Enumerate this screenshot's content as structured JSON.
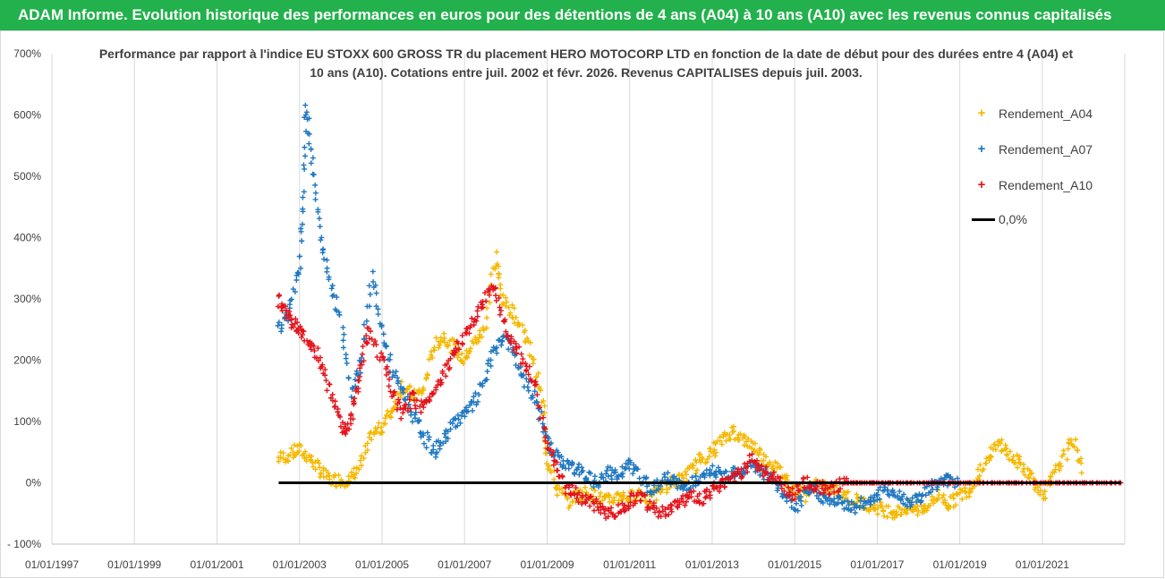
{
  "banner": {
    "title": "ADAM Informe. Evolution historique des performances en euros pour des détentions de 4 ans (A04) à 10 ans (A10) avec les revenus connus capitalisés",
    "background": "#22b14c"
  },
  "chart_data": {
    "type": "scatter",
    "title": "Performance par rapport à l'indice EU STOXX 600 GROSS TR  du placement HERO MOTOCORP LTD en fonction de la date de début pour des durées entre 4 (A04) et 10 ans (A10).  Cotations entre juil. 2002 et févr. 2026. Revenus CAPITALISES depuis juil. 2003.",
    "xlabel": "",
    "ylabel": "",
    "x_tick_labels": [
      "01/01/1997",
      "01/01/1999",
      "01/01/2001",
      "01/01/2003",
      "01/01/2005",
      "01/01/2007",
      "01/01/2009",
      "01/01/2011",
      "01/01/2013",
      "01/01/2015",
      "01/01/2017",
      "01/01/2019",
      "01/01/2021"
    ],
    "y_tick_labels": [
      "700%",
      "600%",
      "500%",
      "400%",
      "300%",
      "200%",
      "100%",
      "0%",
      "- 100%"
    ],
    "ylim": [
      -100,
      700
    ],
    "xlim": [
      "1997-01-01",
      "2022-12-31"
    ],
    "grid": "vertical",
    "legend_position": "top-right",
    "series": [
      {
        "name": "Rendement_A04",
        "color": "#f5b800",
        "marker": "+",
        "points": [
          [
            "2002-07",
            40
          ],
          [
            "2002-10",
            45
          ],
          [
            "2003-01",
            55
          ],
          [
            "2003-04",
            40
          ],
          [
            "2003-07",
            20
          ],
          [
            "2003-10",
            5
          ],
          [
            "2004-01",
            5
          ],
          [
            "2004-04",
            5
          ],
          [
            "2004-07",
            30
          ],
          [
            "2004-10",
            80
          ],
          [
            "2005-01",
            90
          ],
          [
            "2005-04",
            120
          ],
          [
            "2005-07",
            160
          ],
          [
            "2005-10",
            140
          ],
          [
            "2006-01",
            150
          ],
          [
            "2006-04",
            220
          ],
          [
            "2006-07",
            240
          ],
          [
            "2006-10",
            220
          ],
          [
            "2007-01",
            200
          ],
          [
            "2007-04",
            230
          ],
          [
            "2007-07",
            250
          ],
          [
            "2007-10",
            370
          ],
          [
            "2007-12",
            300
          ],
          [
            "2008-03",
            280
          ],
          [
            "2008-06",
            250
          ],
          [
            "2008-09",
            200
          ],
          [
            "2008-12",
            120
          ],
          [
            "2009-01",
            40
          ],
          [
            "2009-04",
            -10
          ],
          [
            "2009-07",
            -30
          ],
          [
            "2009-10",
            -20
          ],
          [
            "2010-01",
            -15
          ],
          [
            "2010-04",
            -25
          ],
          [
            "2010-07",
            -30
          ],
          [
            "2010-10",
            -20
          ],
          [
            "2011-01",
            -25
          ],
          [
            "2011-04",
            -15
          ],
          [
            "2011-07",
            -30
          ],
          [
            "2011-10",
            -10
          ],
          [
            "2012-01",
            0
          ],
          [
            "2012-04",
            5
          ],
          [
            "2012-07",
            20
          ],
          [
            "2012-10",
            40
          ],
          [
            "2013-01",
            50
          ],
          [
            "2013-04",
            70
          ],
          [
            "2013-07",
            85
          ],
          [
            "2013-10",
            70
          ],
          [
            "2014-01",
            60
          ],
          [
            "2014-04",
            40
          ],
          [
            "2014-07",
            30
          ],
          [
            "2014-10",
            10
          ],
          [
            "2015-01",
            -10
          ],
          [
            "2015-04",
            -20
          ],
          [
            "2015-07",
            0
          ],
          [
            "2015-10",
            -10
          ],
          [
            "2016-01",
            -10
          ],
          [
            "2016-04",
            -20
          ],
          [
            "2016-07",
            -30
          ],
          [
            "2016-10",
            -35
          ],
          [
            "2017-01",
            -40
          ],
          [
            "2017-04",
            -45
          ],
          [
            "2017-07",
            -48
          ],
          [
            "2017-10",
            -40
          ],
          [
            "2018-01",
            -45
          ],
          [
            "2018-04",
            -35
          ],
          [
            "2018-07",
            -20
          ],
          [
            "2018-10",
            -35
          ],
          [
            "2019-01",
            -20
          ],
          [
            "2019-04",
            -10
          ],
          [
            "2019-07",
            20
          ],
          [
            "2019-10",
            50
          ],
          [
            "2020-01",
            65
          ],
          [
            "2020-04",
            40
          ],
          [
            "2020-07",
            30
          ],
          [
            "2020-10",
            10
          ],
          [
            "2021-01",
            -20
          ],
          [
            "2021-04",
            5
          ],
          [
            "2021-07",
            40
          ],
          [
            "2021-10",
            70
          ],
          [
            "2022-01",
            20
          ]
        ]
      },
      {
        "name": "Rendement_A07",
        "color": "#1f77c0",
        "marker": "+",
        "points": [
          [
            "2002-07",
            250
          ],
          [
            "2002-10",
            280
          ],
          [
            "2003-01",
            350
          ],
          [
            "2003-02",
            450
          ],
          [
            "2003-03",
            620
          ],
          [
            "2003-05",
            520
          ],
          [
            "2003-07",
            400
          ],
          [
            "2003-10",
            330
          ],
          [
            "2004-01",
            270
          ],
          [
            "2004-04",
            150
          ],
          [
            "2004-07",
            200
          ],
          [
            "2004-10",
            340
          ],
          [
            "2005-01",
            250
          ],
          [
            "2005-04",
            180
          ],
          [
            "2005-07",
            150
          ],
          [
            "2005-10",
            110
          ],
          [
            "2006-01",
            80
          ],
          [
            "2006-04",
            50
          ],
          [
            "2006-07",
            70
          ],
          [
            "2006-10",
            100
          ],
          [
            "2007-01",
            110
          ],
          [
            "2007-04",
            130
          ],
          [
            "2007-07",
            170
          ],
          [
            "2007-10",
            220
          ],
          [
            "2008-01",
            240
          ],
          [
            "2008-04",
            200
          ],
          [
            "2008-07",
            160
          ],
          [
            "2008-10",
            130
          ],
          [
            "2009-01",
            70
          ],
          [
            "2009-04",
            40
          ],
          [
            "2009-07",
            30
          ],
          [
            "2009-10",
            20
          ],
          [
            "2010-01",
            10
          ],
          [
            "2010-04",
            -5
          ],
          [
            "2010-07",
            20
          ],
          [
            "2010-10",
            10
          ],
          [
            "2011-01",
            30
          ],
          [
            "2011-04",
            10
          ],
          [
            "2011-07",
            -10
          ],
          [
            "2011-10",
            0
          ],
          [
            "2012-01",
            10
          ],
          [
            "2012-04",
            -10
          ],
          [
            "2012-07",
            0
          ],
          [
            "2012-10",
            5
          ],
          [
            "2013-01",
            20
          ],
          [
            "2013-04",
            10
          ],
          [
            "2013-07",
            20
          ],
          [
            "2013-10",
            20
          ],
          [
            "2014-01",
            30
          ],
          [
            "2014-04",
            15
          ],
          [
            "2014-07",
            0
          ],
          [
            "2014-10",
            -20
          ],
          [
            "2015-01",
            -40
          ],
          [
            "2015-04",
            -20
          ],
          [
            "2015-07",
            -10
          ],
          [
            "2015-10",
            -30
          ],
          [
            "2016-01",
            -30
          ],
          [
            "2016-04",
            -35
          ],
          [
            "2016-07",
            -40
          ],
          [
            "2016-10",
            -30
          ],
          [
            "2017-01",
            -20
          ],
          [
            "2017-04",
            -10
          ],
          [
            "2017-07",
            -20
          ],
          [
            "2017-10",
            -30
          ],
          [
            "2018-01",
            -25
          ],
          [
            "2018-04",
            -10
          ],
          [
            "2018-07",
            0
          ],
          [
            "2018-10",
            5
          ],
          [
            "2019-01",
            0
          ]
        ]
      },
      {
        "name": "Rendement_A10",
        "color": "#e3131b",
        "marker": "+",
        "points": [
          [
            "2002-07",
            300
          ],
          [
            "2002-09",
            280
          ],
          [
            "2002-11",
            260
          ],
          [
            "2003-01",
            250
          ],
          [
            "2003-04",
            230
          ],
          [
            "2003-07",
            200
          ],
          [
            "2003-10",
            150
          ],
          [
            "2004-01",
            100
          ],
          [
            "2004-03",
            80
          ],
          [
            "2004-05",
            130
          ],
          [
            "2004-07",
            190
          ],
          [
            "2004-09",
            250
          ],
          [
            "2005-01",
            200
          ],
          [
            "2005-04",
            150
          ],
          [
            "2005-07",
            110
          ],
          [
            "2005-10",
            140
          ],
          [
            "2006-01",
            120
          ],
          [
            "2006-04",
            150
          ],
          [
            "2006-07",
            180
          ],
          [
            "2006-10",
            210
          ],
          [
            "2007-01",
            240
          ],
          [
            "2007-04",
            270
          ],
          [
            "2007-07",
            300
          ],
          [
            "2007-10",
            320
          ],
          [
            "2008-01",
            250
          ],
          [
            "2008-04",
            220
          ],
          [
            "2008-07",
            190
          ],
          [
            "2008-10",
            150
          ],
          [
            "2009-01",
            60
          ],
          [
            "2009-04",
            20
          ],
          [
            "2009-07",
            -10
          ],
          [
            "2009-10",
            -20
          ],
          [
            "2010-01",
            -30
          ],
          [
            "2010-04",
            -40
          ],
          [
            "2010-07",
            -50
          ],
          [
            "2010-10",
            -45
          ],
          [
            "2011-01",
            -30
          ],
          [
            "2011-04",
            -20
          ],
          [
            "2011-07",
            -40
          ],
          [
            "2011-10",
            -50
          ],
          [
            "2012-01",
            -45
          ],
          [
            "2012-04",
            -30
          ],
          [
            "2012-07",
            -20
          ],
          [
            "2012-10",
            -25
          ],
          [
            "2013-01",
            -15
          ],
          [
            "2013-04",
            0
          ],
          [
            "2013-07",
            10
          ],
          [
            "2013-10",
            20
          ],
          [
            "2014-01",
            40
          ],
          [
            "2014-04",
            20
          ],
          [
            "2014-07",
            10
          ],
          [
            "2014-10",
            -10
          ],
          [
            "2015-01",
            -20
          ],
          [
            "2015-04",
            0
          ],
          [
            "2015-07",
            -5
          ],
          [
            "2015-10",
            -10
          ],
          [
            "2016-01",
            -5
          ],
          [
            "2016-04",
            0
          ],
          [
            "2016-07",
            0
          ],
          [
            "2016-10",
            0
          ],
          [
            "2017-01",
            0
          ],
          [
            "2017-07",
            0
          ],
          [
            "2018-01",
            0
          ],
          [
            "2018-07",
            0
          ],
          [
            "2019-01",
            0
          ],
          [
            "2019-07",
            0
          ],
          [
            "2020-01",
            0
          ],
          [
            "2020-07",
            0
          ],
          [
            "2021-01",
            0
          ],
          [
            "2021-07",
            0
          ],
          [
            "2022-01",
            0
          ],
          [
            "2022-07",
            0
          ],
          [
            "2022-12",
            0
          ]
        ]
      },
      {
        "name": "0,0%",
        "color": "#000000",
        "marker": "line",
        "points": [
          [
            "2002-07",
            0
          ],
          [
            "2022-12",
            0
          ]
        ]
      }
    ]
  }
}
